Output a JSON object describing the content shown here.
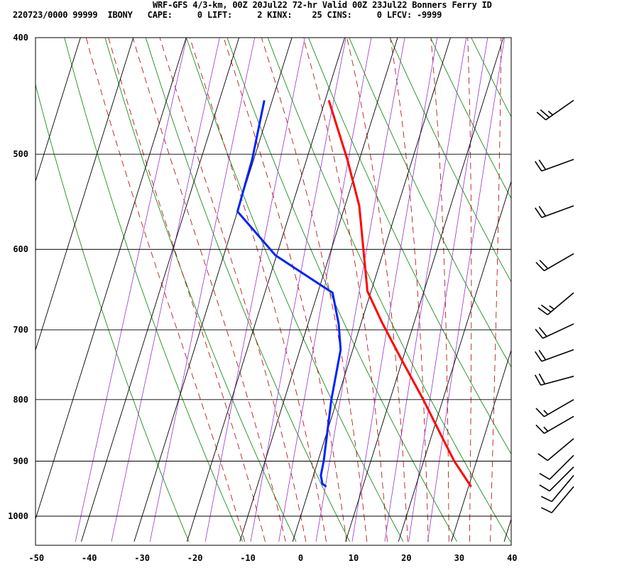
{
  "header": {
    "title": "WRF-GFS 4/3-km, 00Z 20Jul22 72-hr Valid 00Z 23Jul22 Bonners Ferry ID",
    "indices": "220723/0000 99999  IBONY   CAPE:     0 LIFT:     2 KINX:    25 CINS:     0 LFCV: -9999"
  },
  "colors": {
    "temperature": "#ff0000",
    "dewpoint": "#0022ff",
    "isotherm_grid": "#000000",
    "isobar_grid": "#000000",
    "dry_adiabat": "#008000",
    "moist_adiabat": "#b00000",
    "mixing_ratio": "#9933cc",
    "wind_barb": "#000000"
  },
  "chart_data": {
    "type": "line",
    "title": "",
    "xlabel": "",
    "ylabel": "",
    "x_ticks": [
      -50,
      -40,
      -30,
      -20,
      -10,
      0,
      10,
      20,
      30,
      40
    ],
    "y_ticks": [
      400,
      500,
      600,
      700,
      800,
      900,
      1000
    ],
    "xlim": [
      -50,
      40
    ],
    "ylim": [
      1050,
      400
    ],
    "y_scale": "log",
    "grid": true,
    "series": [
      {
        "key": "temperature",
        "points": [
          [
            -19.3,
            451
          ],
          [
            -12.3,
            505
          ],
          [
            -7.3,
            552
          ],
          [
            -3.6,
            605
          ],
          [
            -0.7,
            650
          ],
          [
            3.9,
            690
          ],
          [
            9.7,
            740
          ],
          [
            16.3,
            800
          ],
          [
            22.3,
            862
          ],
          [
            25.8,
            900
          ],
          [
            30.5,
            945
          ]
        ]
      },
      {
        "key": "dewpoint",
        "points": [
          [
            -31.5,
            451
          ],
          [
            -30.3,
            505
          ],
          [
            -30.0,
            558
          ],
          [
            -20.2,
            607
          ],
          [
            -7.2,
            652
          ],
          [
            -4.2,
            692
          ],
          [
            -2.3,
            727
          ],
          [
            -1.1,
            800
          ],
          [
            0.3,
            862
          ],
          [
            1.1,
            900
          ],
          [
            1.4,
            925
          ],
          [
            2.2,
            940
          ],
          [
            3.1,
            945
          ]
        ]
      }
    ],
    "dry_adiabats_K": [
      250,
      260,
      270,
      280,
      290,
      300,
      310,
      320,
      330,
      340,
      350,
      360,
      370
    ],
    "moist_adiabats_C": [
      -12,
      -8,
      -4,
      0,
      4,
      8,
      12,
      16,
      20,
      24,
      28,
      32,
      36
    ],
    "mixing_ratios_gkg": [
      0.1,
      0.2,
      0.4,
      1,
      2,
      3,
      5,
      8,
      12,
      16,
      20
    ],
    "wind_barbs": [
      {
        "p": 451,
        "spd": 25,
        "dir": 235
      },
      {
        "p": 505,
        "spd": 20,
        "dir": 250
      },
      {
        "p": 552,
        "spd": 20,
        "dir": 250
      },
      {
        "p": 605,
        "spd": 20,
        "dir": 240
      },
      {
        "p": 652,
        "spd": 25,
        "dir": 230
      },
      {
        "p": 692,
        "spd": 20,
        "dir": 245
      },
      {
        "p": 727,
        "spd": 20,
        "dir": 250
      },
      {
        "p": 765,
        "spd": 20,
        "dir": 255
      },
      {
        "p": 800,
        "spd": 15,
        "dir": 240
      },
      {
        "p": 826,
        "spd": 15,
        "dir": 240
      },
      {
        "p": 862,
        "spd": 10,
        "dir": 230
      },
      {
        "p": 890,
        "spd": 10,
        "dir": 225
      },
      {
        "p": 910,
        "spd": 10,
        "dir": 225
      },
      {
        "p": 925,
        "spd": 10,
        "dir": 220
      },
      {
        "p": 945,
        "spd": 10,
        "dir": 220
      }
    ]
  }
}
